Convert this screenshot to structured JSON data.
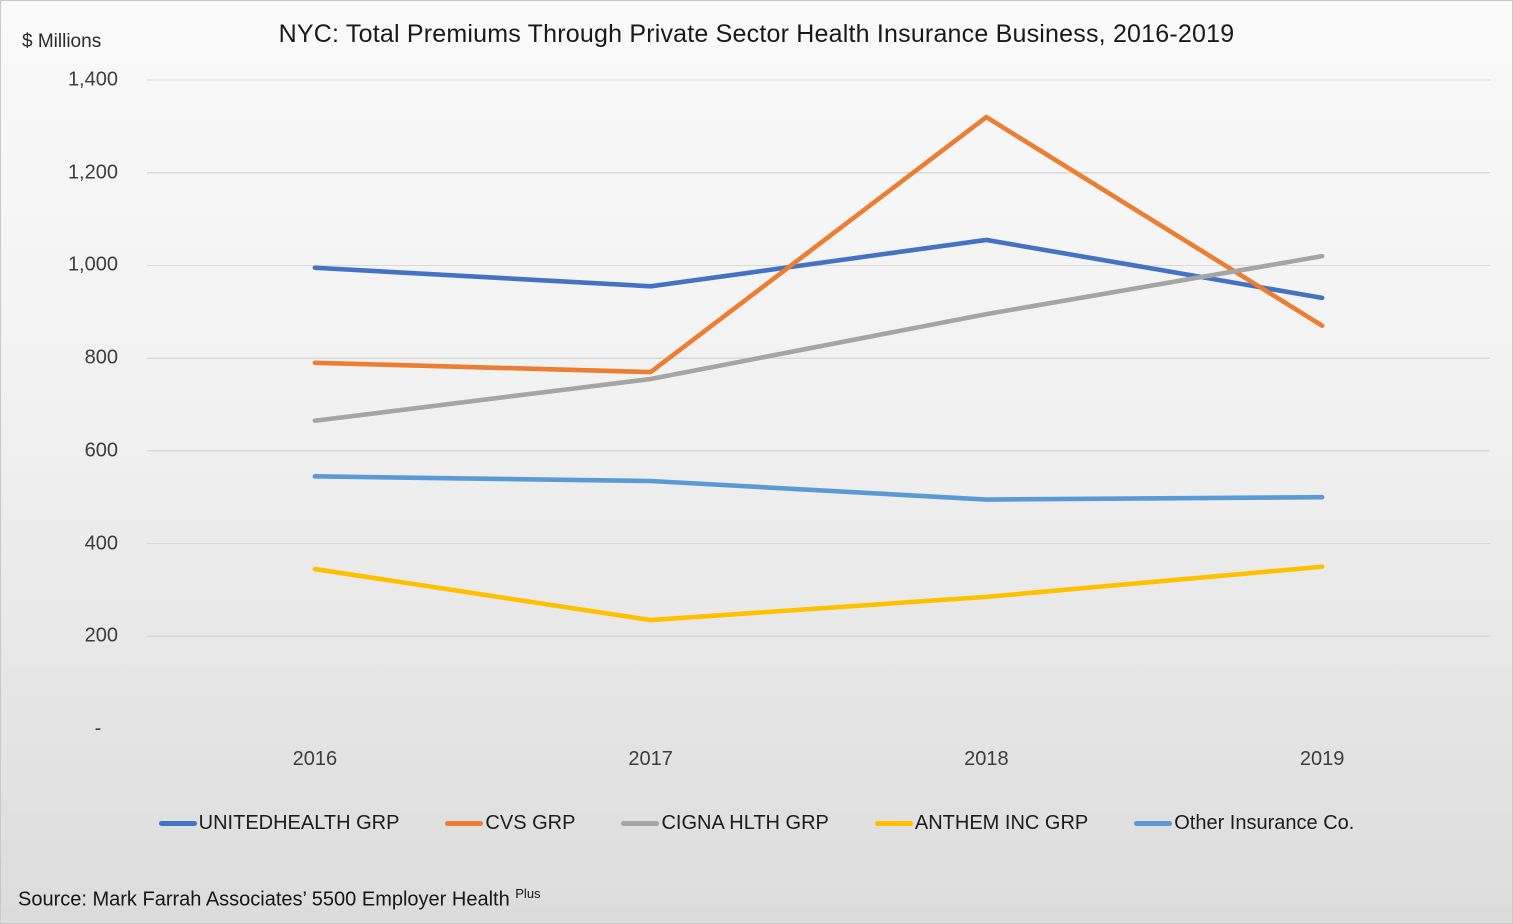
{
  "page": {
    "title": "NYC: Total Premiums Through Private Sector Health Insurance Business, 2016-2019",
    "y_axis_unit_label": "$ Millions",
    "source_prefix": "Source: Mark Farrah Associates’ 5500 Employer Health ",
    "source_superscript": "Plus"
  },
  "colors": {
    "background_top": "#fafafa",
    "background_bottom": "#dcdcdc",
    "gridline": "#d9d9d9",
    "title_text": "#191919",
    "axis_text": "#3d3d3d",
    "series_unitedhealth": "#4472C4",
    "series_cvs": "#ED7D31",
    "series_cigna": "#A5A5A5",
    "series_anthem": "#FFC000",
    "series_other": "#5B9BD5"
  },
  "chart_data": {
    "type": "line",
    "title": "NYC: Total Premiums Through Private Sector Health Insurance Business, 2016-2019",
    "xlabel": "",
    "ylabel": "$ Millions",
    "categories": [
      "2016",
      "2017",
      "2018",
      "2019"
    ],
    "series": [
      {
        "name": "UNITEDHEALTH GRP",
        "color": "#4472C4",
        "values": [
          995,
          955,
          1055,
          930
        ]
      },
      {
        "name": "CVS GRP",
        "color": "#ED7D31",
        "values": [
          790,
          770,
          1320,
          870
        ]
      },
      {
        "name": "CIGNA HLTH GRP",
        "color": "#A5A5A5",
        "values": [
          665,
          755,
          895,
          1020
        ]
      },
      {
        "name": "ANTHEM INC GRP",
        "color": "#FFC000",
        "values": [
          345,
          235,
          285,
          350
        ]
      },
      {
        "name": "Other Insurance Co.",
        "color": "#5B9BD5",
        "values": [
          545,
          535,
          495,
          500
        ]
      }
    ],
    "ylim": [
      0,
      1400
    ],
    "y_ticks": [
      {
        "value": 1400,
        "label": "1,400"
      },
      {
        "value": 1200,
        "label": "1,200"
      },
      {
        "value": 1000,
        "label": "1,000"
      },
      {
        "value": 800,
        "label": "800"
      },
      {
        "value": 600,
        "label": "600"
      },
      {
        "value": 400,
        "label": "400"
      },
      {
        "value": 200,
        "label": "200"
      },
      {
        "value": 0,
        "label": "-"
      }
    ],
    "grid": true,
    "zero_gridline_visible": false,
    "legend_position": "bottom",
    "category_axis_mode": "between-ticks"
  }
}
